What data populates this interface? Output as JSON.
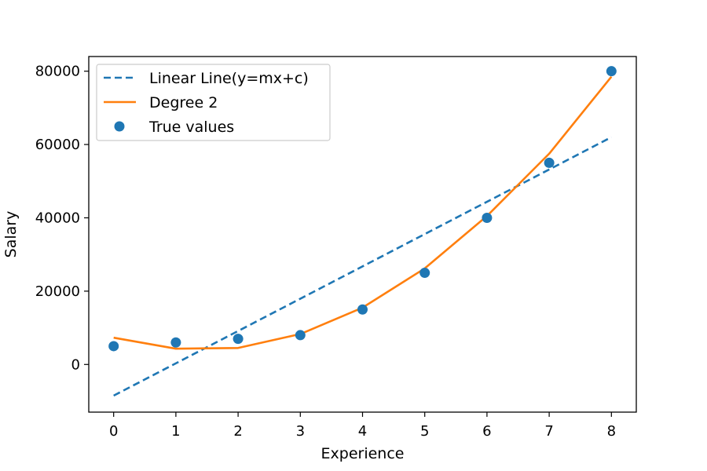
{
  "chart_data": {
    "type": "line",
    "title": "",
    "xlabel": "Experience",
    "ylabel": "Salary",
    "xlim": [
      -0.4,
      8.4
    ],
    "ylim": [
      -13000,
      84000
    ],
    "x_ticks": [
      0,
      1,
      2,
      3,
      4,
      5,
      6,
      7,
      8
    ],
    "y_ticks": [
      0,
      20000,
      40000,
      60000,
      80000
    ],
    "grid": false,
    "legend": {
      "placement": "upper-left",
      "entries": [
        "Linear Line(y=mx+c)",
        "Degree 2",
        "True values"
      ]
    },
    "series": [
      {
        "name": "Linear Line(y=mx+c)",
        "kind": "line",
        "style": "dashed",
        "color": "#1f77b4",
        "x": [
          0,
          8
        ],
        "values": [
          -8500,
          62000
        ]
      },
      {
        "name": "Degree 2",
        "kind": "line",
        "style": "solid",
        "color": "#ff7f0e",
        "x": [
          0,
          1,
          2,
          3,
          4,
          5,
          6,
          7,
          8
        ],
        "values": [
          7300,
          4300,
          4500,
          8300,
          15500,
          26200,
          40500,
          57500,
          78500
        ]
      },
      {
        "name": "True values",
        "kind": "scatter",
        "color": "#1f77b4",
        "x": [
          0,
          1,
          2,
          3,
          4,
          5,
          6,
          7,
          8
        ],
        "values": [
          5000,
          6000,
          7000,
          8000,
          15000,
          25000,
          40000,
          55000,
          80000
        ]
      }
    ]
  }
}
